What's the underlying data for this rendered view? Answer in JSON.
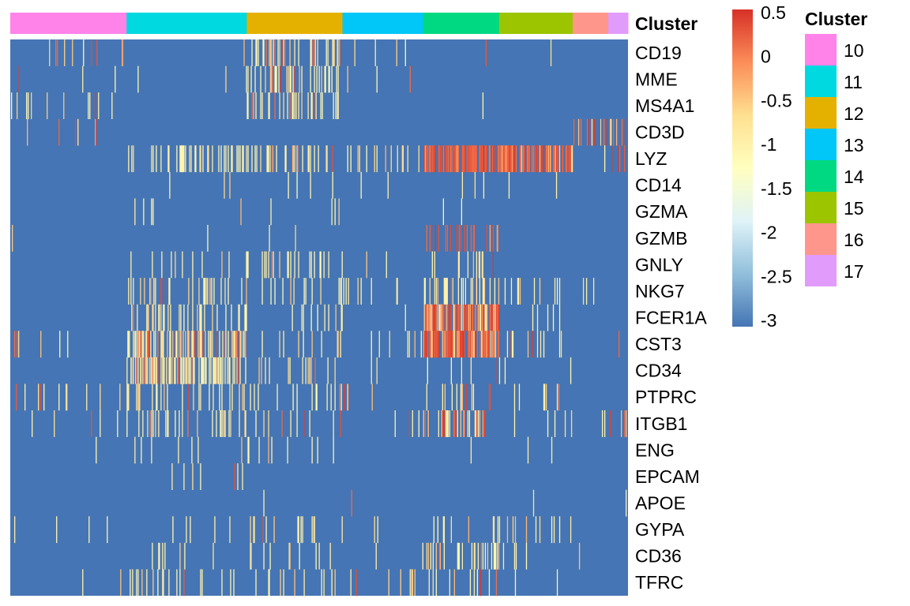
{
  "chart_data": {
    "type": "heatmap",
    "annotation_title": "Cluster",
    "legend_title": "Cluster",
    "genes": [
      "CD19",
      "MME",
      "MS4A1",
      "CD3D",
      "LYZ",
      "CD14",
      "GZMA",
      "GZMB",
      "GNLY",
      "NKG7",
      "FCER1A",
      "CST3",
      "CD34",
      "PTPRC",
      "ITGB1",
      "ENG",
      "EPCAM",
      "APOE",
      "GYPA",
      "CD36",
      "TFRC"
    ],
    "clusters": [
      {
        "name": "10",
        "color": "#FF83E9",
        "cells": 147
      },
      {
        "name": "11",
        "color": "#00D9E0",
        "cells": 152
      },
      {
        "name": "12",
        "color": "#E5B100",
        "cells": 121
      },
      {
        "name": "13",
        "color": "#00C7F7",
        "cells": 102
      },
      {
        "name": "14",
        "color": "#00D982",
        "cells": 96
      },
      {
        "name": "15",
        "color": "#9CC500",
        "cells": 93
      },
      {
        "name": "16",
        "color": "#FF968B",
        "cells": 45
      },
      {
        "name": "17",
        "color": "#E19BFA",
        "cells": 25
      }
    ],
    "color_scale": {
      "min": -3,
      "max": 0.5,
      "ticks": [
        "0.5",
        "0",
        "-0.5",
        "-1",
        "-1.5",
        "-2",
        "-2.5",
        "-3"
      ],
      "colors": [
        "#4575B4",
        "#91BFDB",
        "#E0F3F8",
        "#FFFFBF",
        "#FEE090",
        "#FC8D59",
        "#D73027"
      ]
    },
    "background_value": -3
  }
}
